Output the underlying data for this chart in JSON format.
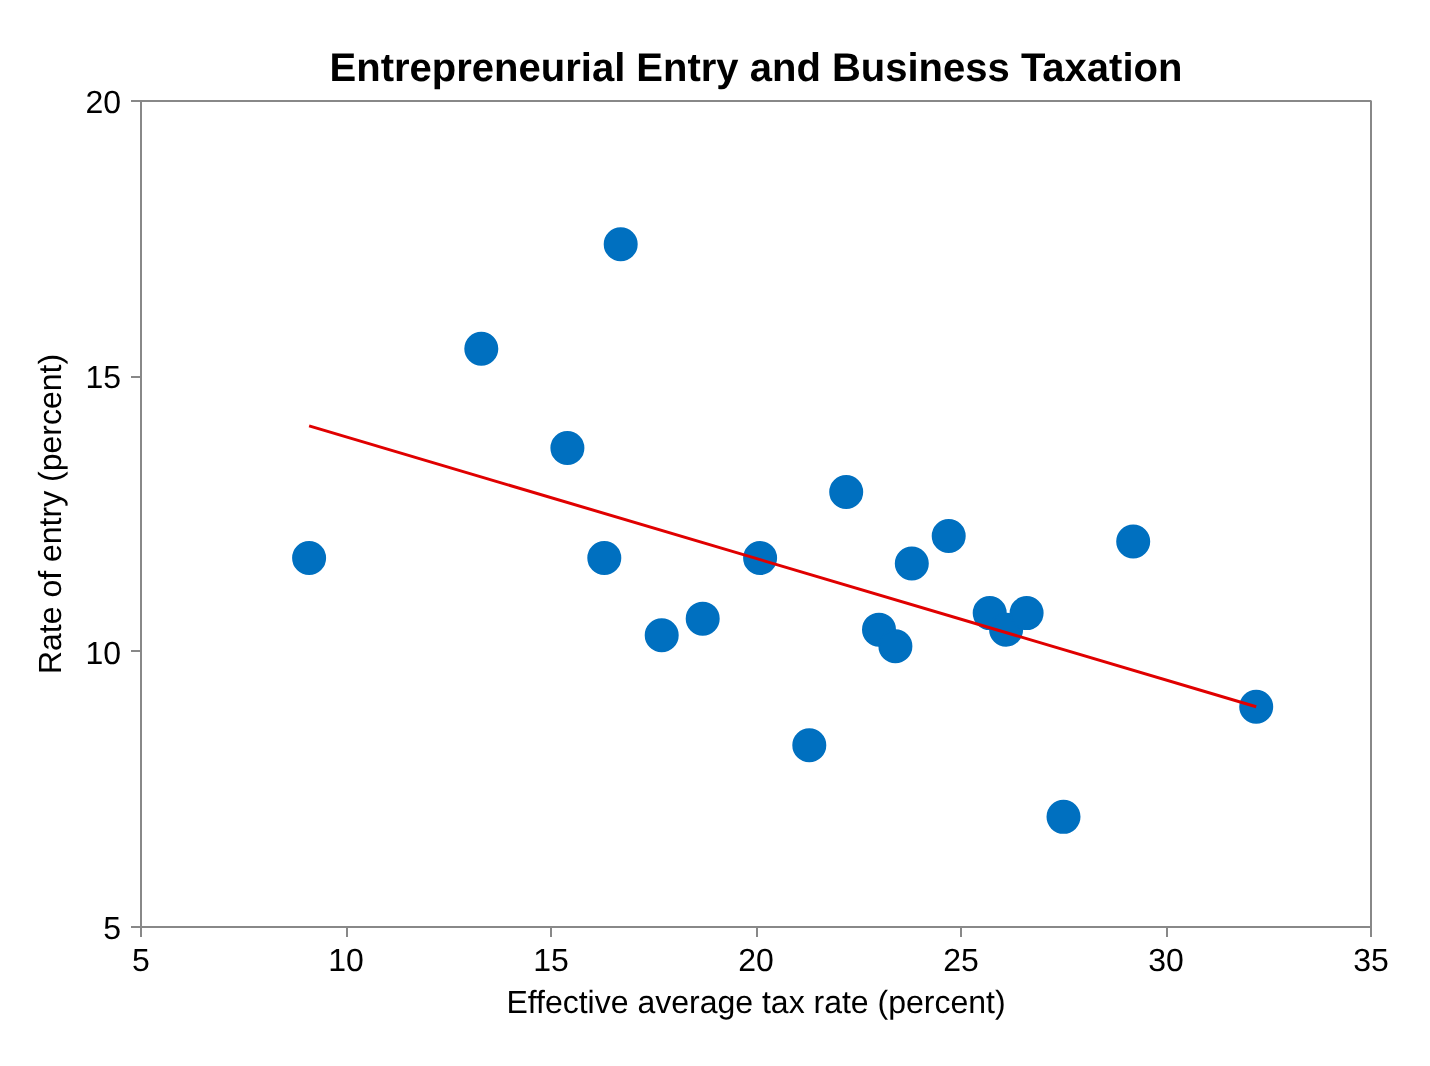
{
  "chart_data": {
    "type": "scatter",
    "title": "Entrepreneurial Entry and Business Taxation",
    "xlabel": "Effective average tax rate (percent)",
    "ylabel": "Rate of entry (percent)",
    "xlim": [
      5,
      35
    ],
    "xticks": [
      5,
      10,
      15,
      20,
      25,
      30,
      35
    ],
    "ylim": [
      5,
      20
    ],
    "yticks": [
      5,
      10,
      15,
      20
    ],
    "grid": false,
    "marker": "circle",
    "series": [
      {
        "color": "#0070c0",
        "x": [
          9.1,
          13.3,
          16.7,
          15.4,
          16.3,
          17.7,
          18.7,
          20.1,
          21.3,
          22.2,
          23.0,
          23.4,
          23.8,
          24.7,
          25.7,
          26.1,
          26.6,
          27.5,
          29.2,
          32.2
        ],
        "values": [
          11.7,
          15.5,
          17.4,
          13.7,
          11.7,
          10.3,
          10.6,
          11.7,
          8.3,
          12.9,
          10.4,
          10.1,
          11.6,
          12.1,
          10.7,
          10.4,
          10.7,
          7.0,
          12.0,
          9.0
        ]
      },
      {
        "type": "line",
        "color": "#e00000",
        "marker": "none",
        "line_style": "solid",
        "x": [
          9.1,
          32.2
        ],
        "values": [
          14.1,
          9.0
        ]
      }
    ]
  }
}
